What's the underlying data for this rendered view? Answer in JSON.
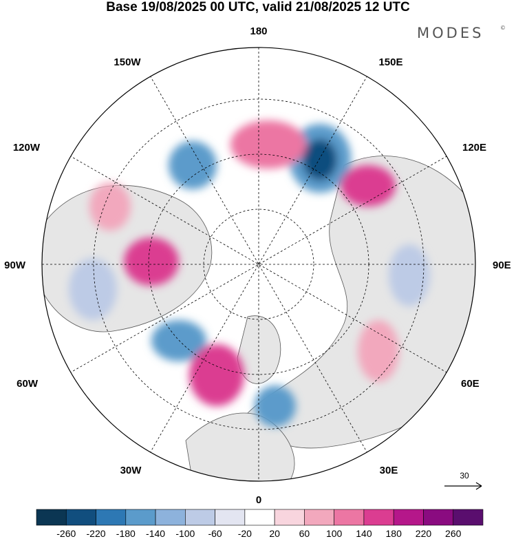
{
  "title": "Base 19/08/2025 00 UTC, valid 21/08/2025 12 UTC",
  "brand": "MODES",
  "brand_mark": "©",
  "map": {
    "projection": "north-polar-stereographic",
    "longitude_labels": {
      "top": "180",
      "top_left": "150W",
      "top_right": "150E",
      "upper_left": "120W",
      "upper_right": "120E",
      "left": "90W",
      "right": "90E",
      "lower_left": "60W",
      "lower_right": "60E",
      "bottom_left": "30W",
      "bottom_right": "30E",
      "bottom": "0"
    },
    "reference_vector": {
      "label": "30"
    }
  },
  "colorbar": {
    "tick_labels": [
      "-260",
      "-220",
      "-180",
      "-140",
      "-100",
      "-60",
      "-20",
      "20",
      "60",
      "100",
      "140",
      "180",
      "220",
      "260"
    ],
    "colors": [
      "#0b3653",
      "#114e7e",
      "#2d78b4",
      "#5b9bcb",
      "#8db2dc",
      "#bdcbe6",
      "#e3e5f1",
      "#ffffff",
      "#f8d5de",
      "#f2a8bd",
      "#ec76a3",
      "#db3d91",
      "#b5178a",
      "#8a0b80",
      "#5a0e6e"
    ]
  }
}
